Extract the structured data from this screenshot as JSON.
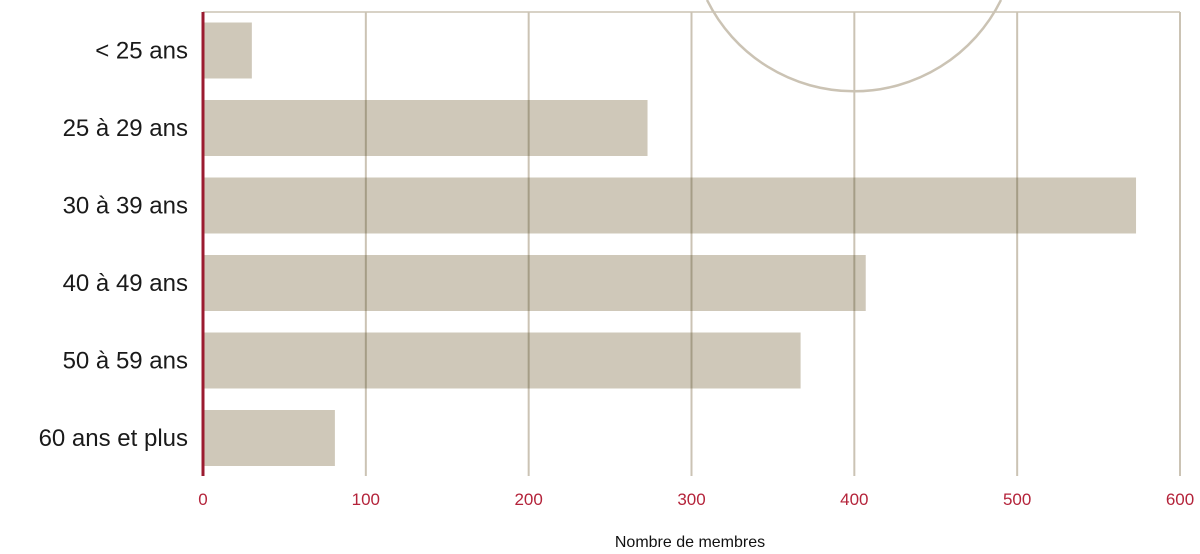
{
  "colors": {
    "bar": "#cfc8b9",
    "bar_overlap_grid": "#a59d86",
    "grid": "#cbc3b4",
    "axis_line": "#9b1b30",
    "tick_label": "#b4233a",
    "decor_circle": "#cbc3b4"
  },
  "chart_data": {
    "type": "bar",
    "orientation": "horizontal",
    "categories": [
      "< 25 ans",
      "25 à 29 ans",
      "30 à 39 ans",
      "40 à 49 ans",
      "50 à 59 ans",
      "60 ans et plus"
    ],
    "values": [
      30,
      273,
      573,
      407,
      367,
      81
    ],
    "title": "",
    "xlabel": "Nombre de membres",
    "ylabel": "",
    "xlim": [
      0,
      600
    ],
    "xticks": [
      "0",
      "100",
      "200",
      "300",
      "400",
      "500",
      "600"
    ],
    "grid": true
  }
}
